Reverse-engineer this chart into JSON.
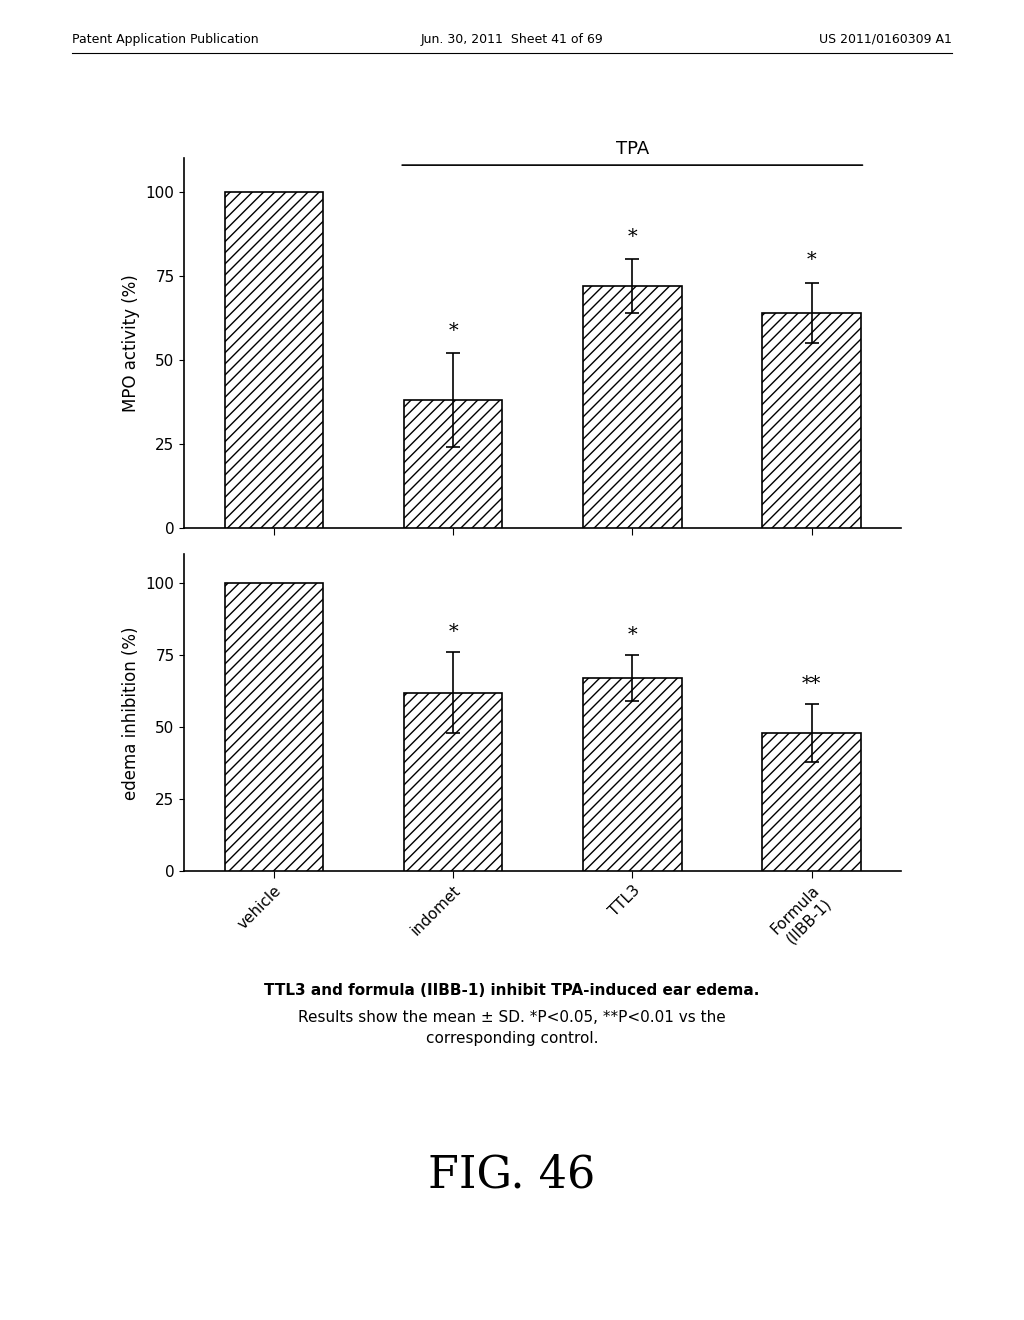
{
  "header_left": "Patent Application Publication",
  "header_center": "Jun. 30, 2011  Sheet 41 of 69",
  "header_right": "US 2011/0160309 A1",
  "tpa_label": "TPA",
  "categories": [
    "vehicle",
    "indomet",
    "TTL3",
    "Formula\n(IIBB-1)"
  ],
  "mpo_values": [
    100,
    38,
    72,
    64
  ],
  "mpo_errors": [
    0,
    14,
    8,
    9
  ],
  "mpo_sig": [
    "",
    "*",
    "*",
    "*"
  ],
  "edema_values": [
    100,
    62,
    67,
    48
  ],
  "edema_errors": [
    0,
    14,
    8,
    10
  ],
  "edema_sig": [
    "",
    "*",
    "*",
    "**"
  ],
  "mpo_ylabel": "MPO activity (%)",
  "edema_ylabel": "edema inhibition (%)",
  "ylim": [
    0,
    110
  ],
  "yticks": [
    0,
    25,
    50,
    75,
    100
  ],
  "caption_bold": "TTL3 and formula (IIBB-1) inhibit TPA-induced ear edema.",
  "caption_normal": "Results show the mean ± SD. *P<0.05, **P<0.01 vs the\ncorresponding control.",
  "fig_label": "FIG. 46",
  "bar_color": "white",
  "hatch": "///",
  "bar_edge_color": "black",
  "background_color": "white"
}
